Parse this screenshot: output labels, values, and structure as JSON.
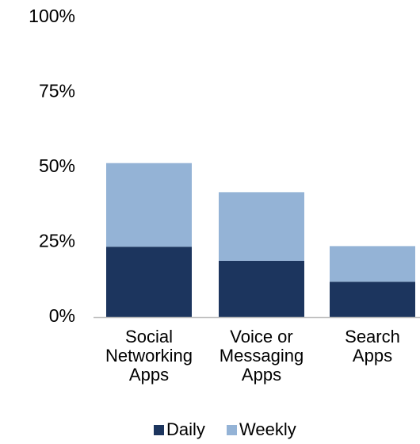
{
  "chart_data": {
    "type": "bar",
    "stacked": true,
    "categories": [
      [
        "Social",
        "Networking",
        "Apps"
      ],
      [
        "Voice or",
        "Messaging",
        "Apps"
      ],
      [
        "Search",
        "Apps"
      ]
    ],
    "series": [
      {
        "name": "Daily",
        "values": [
          23.5,
          18.8,
          11.8
        ],
        "color": "#1c355e"
      },
      {
        "name": "Weekly",
        "values": [
          27.9,
          22.9,
          11.9
        ],
        "color": "#94b3d6"
      }
    ],
    "ylim": [
      0,
      100
    ],
    "yticks": [
      0,
      25,
      50,
      75,
      100
    ],
    "ytick_labels": [
      "0%",
      "25%",
      "50%",
      "75%",
      "100%"
    ],
    "grid": false,
    "legend_position": "bottom",
    "axis_color": "#bfbfbf"
  }
}
